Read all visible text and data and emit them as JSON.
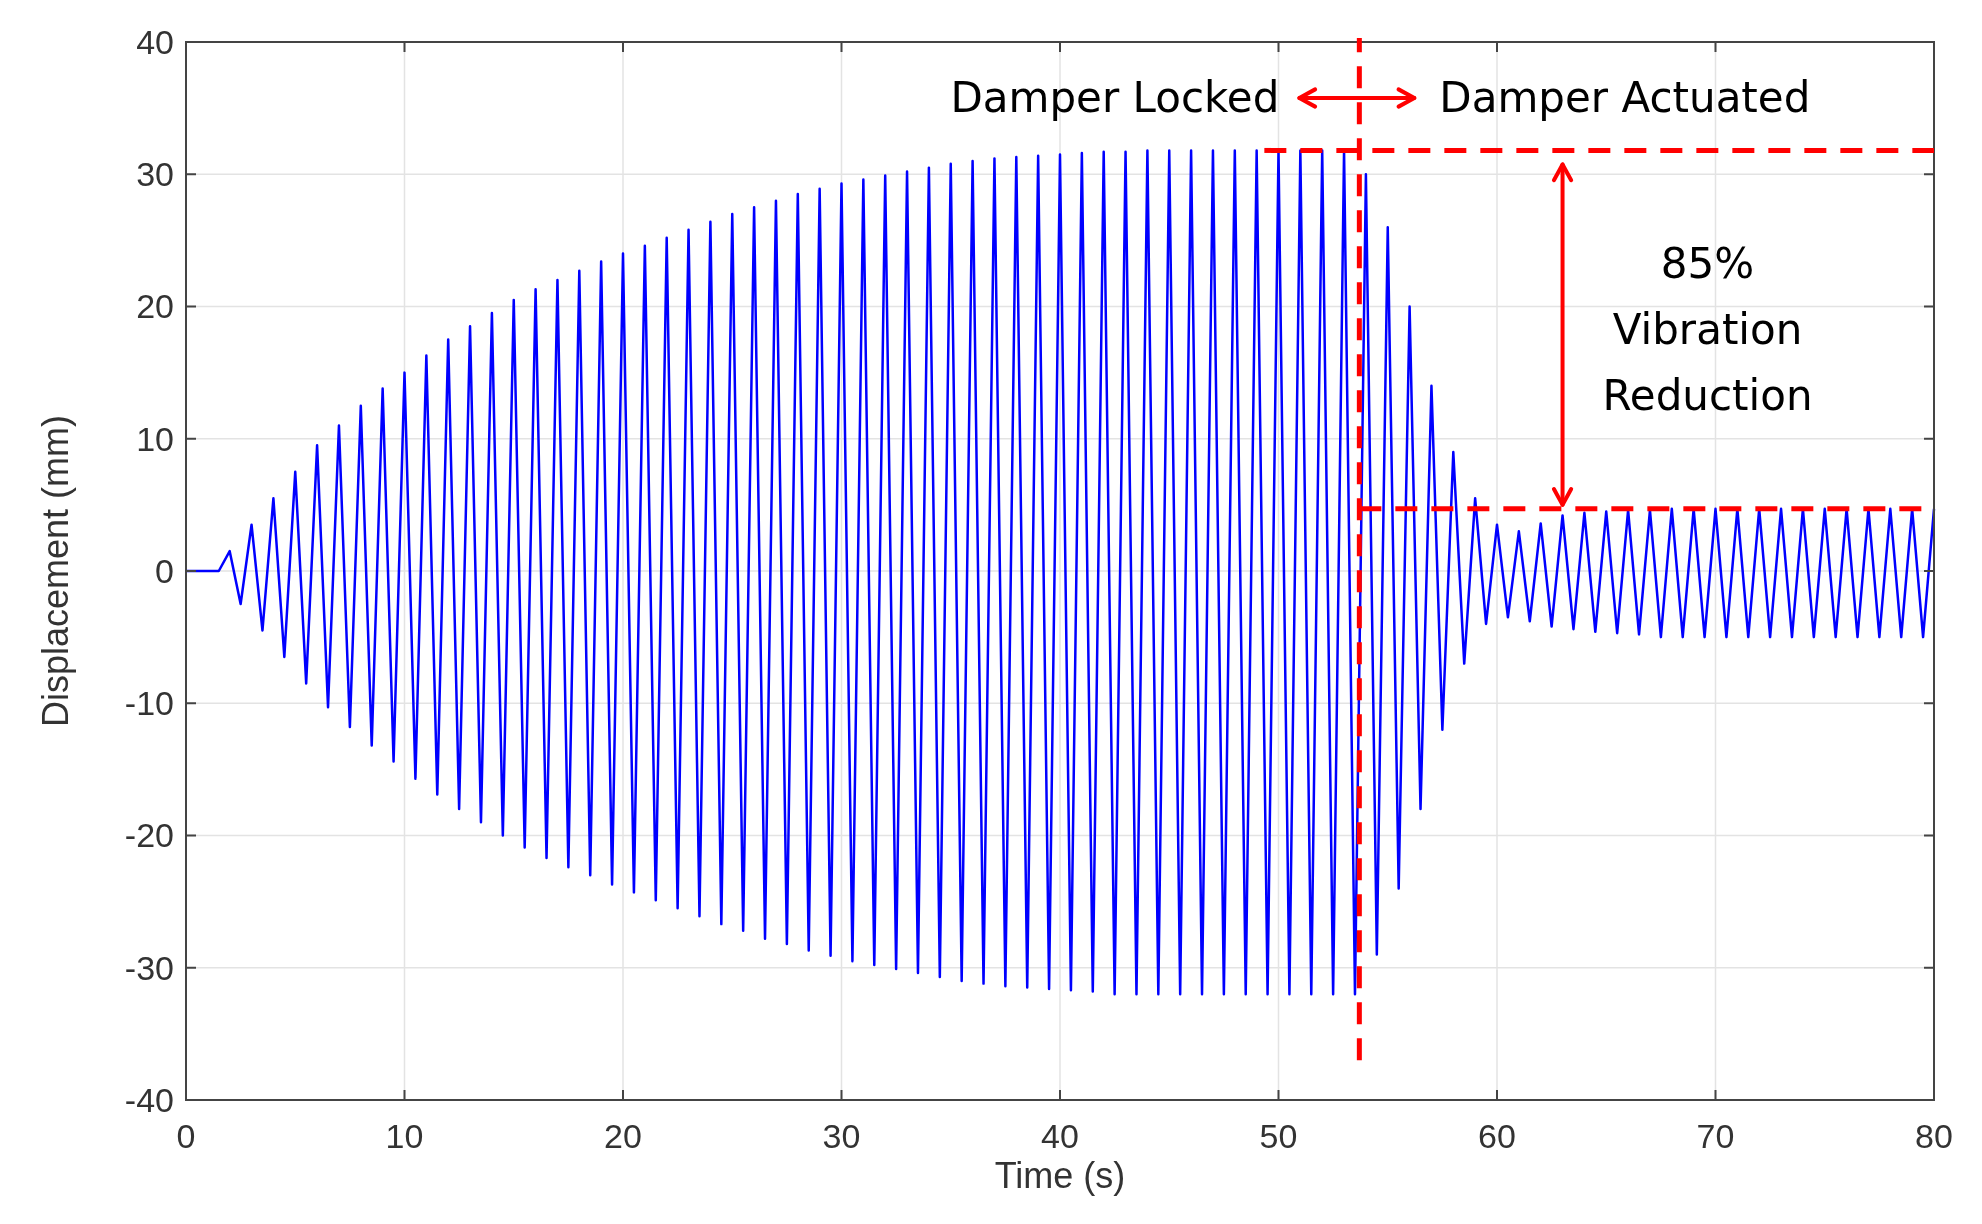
{
  "chart_data": {
    "type": "line",
    "xlabel": "Time (s)",
    "ylabel": "Displacement (mm)",
    "xlim": [
      0,
      80
    ],
    "xticks": [
      0,
      10,
      20,
      30,
      40,
      50,
      60,
      70,
      80
    ],
    "ylim": [
      -40,
      40
    ],
    "yticks": [
      -40,
      -30,
      -20,
      -10,
      0,
      10,
      20,
      30,
      40
    ],
    "grid": true,
    "line_style": "solid",
    "series": [
      {
        "color": "#0000ff",
        "x": [
          0,
          1.5,
          2,
          2.5,
          3,
          3.5,
          4,
          4.5,
          5,
          5.5,
          6,
          6.5,
          7,
          7.5,
          8,
          8.5,
          9,
          9.5,
          10,
          10.5,
          11,
          11.5,
          12,
          12.5,
          13,
          13.5,
          14,
          14.5,
          15,
          15.5,
          16,
          16.5,
          17,
          17.5,
          18,
          18.5,
          19,
          19.5,
          20,
          20.5,
          21,
          21.5,
          22,
          22.5,
          23,
          23.5,
          24,
          24.5,
          25,
          25.5,
          26,
          26.5,
          27,
          27.5,
          28,
          28.5,
          29,
          29.5,
          30,
          30.5,
          31,
          31.5,
          32,
          32.5,
          33,
          33.5,
          34,
          34.5,
          35,
          35.5,
          36,
          36.5,
          37,
          37.5,
          38,
          38.5,
          39,
          39.5,
          40,
          40.5,
          41,
          41.5,
          42,
          42.5,
          43,
          43.5,
          44,
          44.5,
          45,
          45.5,
          46,
          46.5,
          47,
          47.5,
          48,
          48.5,
          49,
          49.5,
          50,
          50.5,
          51,
          51.5,
          52,
          52.5,
          53,
          53.5,
          54,
          54.5,
          55,
          55.5,
          56,
          56.5,
          57,
          57.5,
          58,
          58.5,
          59,
          59.5,
          60,
          60.5,
          61,
          61.5,
          62,
          62.5,
          63,
          63.5,
          64,
          64.5,
          65,
          65.5,
          66,
          66.5,
          67,
          67.5,
          68,
          68.5,
          69,
          69.5,
          70,
          70.5,
          71,
          71.5,
          72,
          72.5,
          73,
          73.5,
          74,
          74.5,
          75,
          75.5,
          76,
          76.5,
          77,
          77.5,
          78,
          78.5,
          79,
          79.5,
          80
        ],
        "values": [
          0,
          0,
          1.5,
          -2.5,
          3.5,
          -4.5,
          5.5,
          -6.5,
          7.5,
          -8.5,
          9.5,
          -10.3,
          11,
          -11.8,
          12.5,
          -13.2,
          13.8,
          -14.4,
          15,
          -15.7,
          16.3,
          -16.9,
          17.5,
          -18,
          18.5,
          -19,
          19.5,
          -20,
          20.5,
          -20.9,
          21.3,
          -21.7,
          22,
          -22.4,
          22.7,
          -23,
          23.4,
          -23.7,
          24,
          -24.3,
          24.6,
          -24.9,
          25.2,
          -25.5,
          25.8,
          -26.1,
          26.4,
          -26.7,
          27,
          -27.2,
          27.5,
          -27.8,
          28,
          -28.2,
          28.5,
          -28.7,
          28.9,
          -29.1,
          29.3,
          -29.5,
          29.6,
          -29.8,
          29.9,
          -30.1,
          30.2,
          -30.4,
          30.5,
          -30.7,
          30.8,
          -31,
          31,
          -31.2,
          31.2,
          -31.4,
          31.3,
          -31.5,
          31.4,
          -31.6,
          31.5,
          -31.7,
          31.6,
          -31.8,
          31.7,
          -32,
          31.7,
          -32,
          31.8,
          -32,
          31.8,
          -32,
          31.8,
          -32,
          31.8,
          -32,
          31.8,
          -32,
          31.8,
          -32,
          31.8,
          -32,
          31.8,
          -32,
          31.8,
          -32,
          31.8,
          -32,
          30,
          -29,
          26,
          -24,
          20,
          -18,
          14,
          -12,
          9,
          -7,
          5.5,
          -4,
          3.5,
          -3.5,
          3,
          -3.8,
          3.6,
          -4.2,
          4.2,
          -4.4,
          4.4,
          -4.6,
          4.5,
          -4.7,
          4.6,
          -4.8,
          4.6,
          -5,
          4.7,
          -5,
          4.7,
          -5,
          4.7,
          -5,
          4.7,
          -5,
          4.7,
          -5,
          4.7,
          -5,
          4.7,
          -5,
          4.7,
          -5,
          4.7,
          -5,
          4.7,
          -5,
          4.7,
          -5,
          4.7,
          -5,
          4.7
        ]
      }
    ],
    "ref_lines": [
      {
        "axis": "x",
        "value": 53.7,
        "color": "#ff0000",
        "line_style": "dashed"
      },
      {
        "axis": "y",
        "value": 31.8,
        "color": "#ff0000",
        "line_style": "dashed"
      },
      {
        "axis": "y",
        "value": 4.7,
        "color": "#ff0000",
        "line_style": "dashed"
      }
    ],
    "annotations": [
      "Damper Locked",
      "Damper Actuated",
      {
        "text": "85% Vibration Reduction",
        "x": 63,
        "y": 4.7
      }
    ]
  }
}
